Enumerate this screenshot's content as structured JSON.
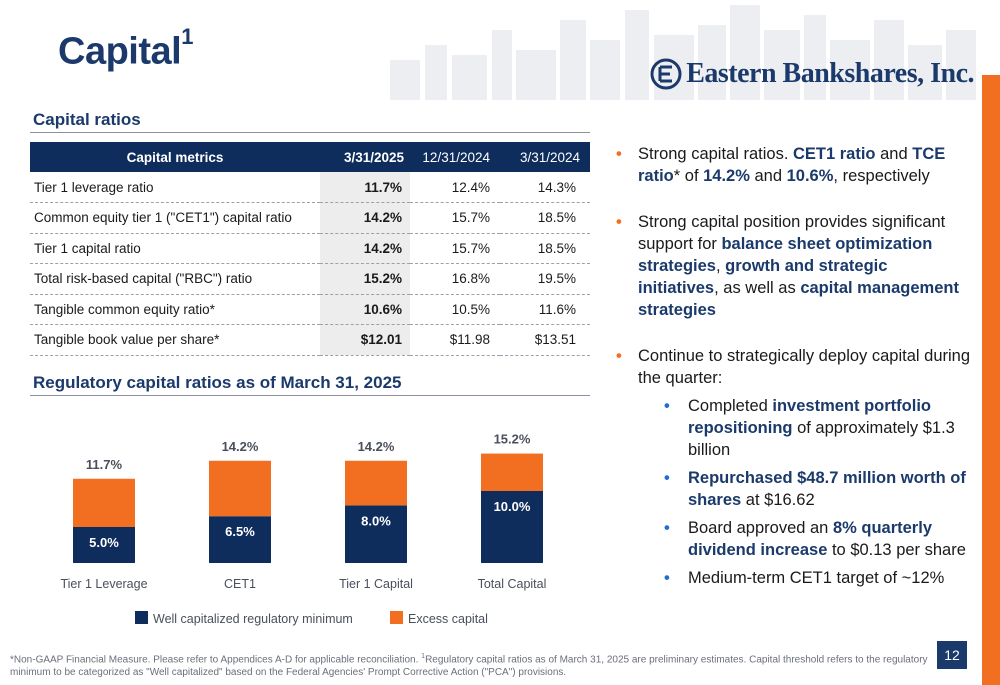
{
  "header": {
    "title": "Capital",
    "title_sup": "1",
    "logo_text": "Eastern Bankshares, Inc."
  },
  "capital_ratios": {
    "section_title": "Capital ratios",
    "columns": [
      "Capital metrics",
      "3/31/2025",
      "12/31/2024",
      "3/31/2024"
    ],
    "rows": [
      {
        "label": "Tier 1 leverage ratio",
        "values": [
          "11.7%",
          "12.4%",
          "14.3%"
        ]
      },
      {
        "label": "Common equity tier 1 (\"CET1\")  capital ratio",
        "values": [
          "14.2%",
          "15.7%",
          "18.5%"
        ]
      },
      {
        "label": "Tier 1 capital ratio",
        "values": [
          "14.2%",
          "15.7%",
          "18.5%"
        ]
      },
      {
        "label": "Total risk-based capital (\"RBC\") ratio",
        "values": [
          "15.2%",
          "16.8%",
          "19.5%"
        ]
      },
      {
        "label": "Tangible common equity ratio*",
        "values": [
          "10.6%",
          "10.5%",
          "11.6%"
        ]
      },
      {
        "label": "Tangible book value per share*",
        "values": [
          "$12.01",
          "$11.98",
          "$13.51"
        ]
      }
    ]
  },
  "regulatory": {
    "section_title": "Regulatory capital ratios as of March 31, 2025"
  },
  "chart_data": {
    "type": "bar",
    "stacked": true,
    "categories": [
      "Tier 1 Leverage",
      "CET1",
      "Tier 1 Capital",
      "Total Capital"
    ],
    "series": [
      {
        "name": "Well capitalized regulatory minimum",
        "values": [
          5.0,
          6.5,
          8.0,
          10.0
        ],
        "color": "#0f2d5c",
        "labels": [
          "5.0%",
          "6.5%",
          "8.0%",
          "10.0%"
        ]
      },
      {
        "name": "Excess capital",
        "values": [
          6.7,
          7.7,
          6.2,
          5.2
        ],
        "color": "#f26f21"
      }
    ],
    "totals": [
      11.7,
      14.2,
      14.2,
      15.2
    ],
    "total_labels": [
      "11.7%",
      "14.2%",
      "14.2%",
      "15.2%"
    ],
    "legend_position": "bottom",
    "ylim": [
      0,
      16
    ]
  },
  "bullets": {
    "b1": {
      "t1": "Strong capital ratios. ",
      "b1": "CET1 ratio",
      "t2": " and ",
      "b2": "TCE ratio",
      "t3": "* of ",
      "b3": "14.2%",
      "t4": " and ",
      "b4": "10.6%",
      "t5": ", respectively"
    },
    "b2": {
      "t1": "Strong capital position provides significant support for ",
      "b1": "balance sheet optimization strategies",
      "t2": ", ",
      "b2": "growth and strategic initiatives",
      "t3": ", as well as ",
      "b3": "capital management strategies"
    },
    "b3": {
      "t1": "Continue to strategically deploy capital during the quarter:"
    },
    "s1": {
      "t1": "Completed ",
      "b1": "investment portfolio repositioning",
      "t2": " of approximately $1.3 billion"
    },
    "s2": {
      "b1": "Repurchased $48.7 million worth of shares",
      "t1": " at $16.62"
    },
    "s3": {
      "t1": "Board approved an ",
      "b1": "8% quarterly dividend increase",
      "t2": " to $0.13 per share"
    },
    "s4": {
      "t1": "Medium-term CET1 target of ~12%"
    }
  },
  "footnote": {
    "part1": "*Non-GAAP Financial Measure. Please refer to Appendices A-D for applicable reconciliation. ",
    "sup": "1",
    "part2": "Regulatory capital ratios as of March 31, 2025 are preliminary estimates. Capital threshold refers to the regulatory minimum to be categorized as \"Well capitalized\" based on the Federal Agencies' Prompt Corrective Action (\"PCA\") provisions."
  },
  "page_number": "12",
  "colors": {
    "navy": "#0f2d5c",
    "orange": "#f26f21",
    "title_blue": "#1b3a6b"
  }
}
